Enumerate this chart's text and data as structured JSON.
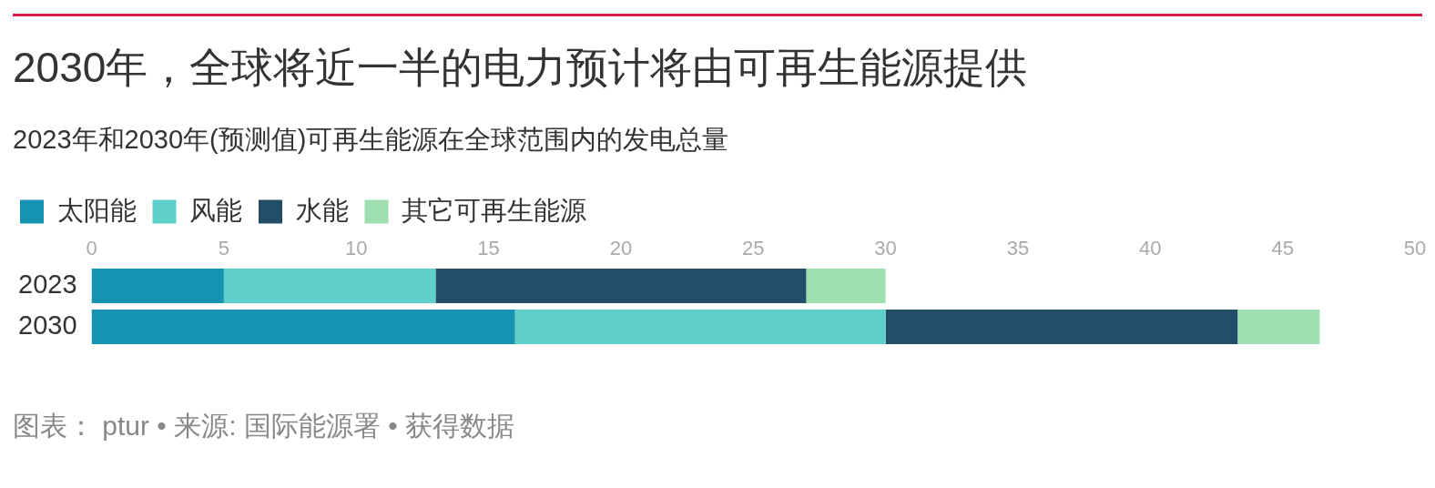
{
  "chart_data": {
    "type": "bar",
    "orientation": "horizontal",
    "stacked": true,
    "title": "2030年，全球将近一半的电力预计将由可再生能源提供",
    "subtitle": "2023年和2030年(预测值)可再生能源在全球范围内的发电总量",
    "categories": [
      "2023",
      "2030"
    ],
    "series": [
      {
        "name": "太阳能",
        "color": "#1693b0",
        "values": [
          5,
          16
        ]
      },
      {
        "name": "风能",
        "color": "#5ecfca",
        "values": [
          8,
          14
        ]
      },
      {
        "name": "水能",
        "color": "#244d67",
        "values": [
          14,
          13.3
        ]
      },
      {
        "name": "其它可再生能源",
        "color": "#9fdeb0",
        "values": [
          3,
          3.1
        ]
      }
    ],
    "xlim": [
      0,
      50
    ],
    "xticks": [
      0,
      5,
      10,
      15,
      20,
      25,
      30,
      35,
      40,
      45,
      50
    ],
    "grid": false,
    "legend": "top left",
    "annotations": [
      "图表： ptur • 来源: 国际能源署 • 获得数据"
    ]
  }
}
